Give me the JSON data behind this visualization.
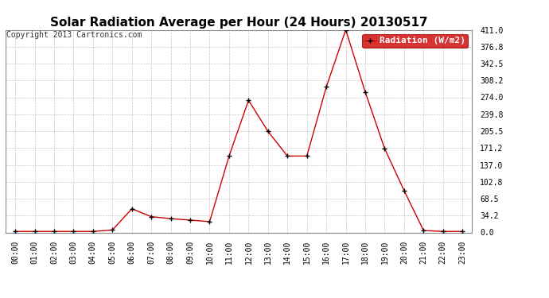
{
  "title": "Solar Radiation Average per Hour (24 Hours) 20130517",
  "copyright": "Copyright 2013 Cartronics.com",
  "legend_label": "Radiation (W/m2)",
  "hours": [
    "00:00",
    "01:00",
    "02:00",
    "03:00",
    "04:00",
    "05:00",
    "06:00",
    "07:00",
    "08:00",
    "09:00",
    "10:00",
    "11:00",
    "12:00",
    "13:00",
    "14:00",
    "15:00",
    "16:00",
    "17:00",
    "18:00",
    "19:00",
    "20:00",
    "21:00",
    "22:00",
    "23:00"
  ],
  "values": [
    2,
    2,
    2,
    2,
    2,
    5,
    48,
    32,
    28,
    25,
    22,
    155,
    268,
    205,
    155,
    155,
    295,
    411,
    285,
    170,
    85,
    4,
    2,
    2
  ],
  "line_color": "#cc0000",
  "marker_color": "#000000",
  "legend_bg": "#cc0000",
  "legend_text_color": "#ffffff",
  "background_color": "#ffffff",
  "grid_color": "#c8c8c8",
  "yticks": [
    0.0,
    34.2,
    68.5,
    102.8,
    137.0,
    171.2,
    205.5,
    239.8,
    274.0,
    308.2,
    342.5,
    376.8,
    411.0
  ],
  "ylim": [
    0,
    411.0
  ],
  "title_fontsize": 11,
  "copyright_fontsize": 7,
  "tick_fontsize": 7,
  "legend_fontsize": 8
}
